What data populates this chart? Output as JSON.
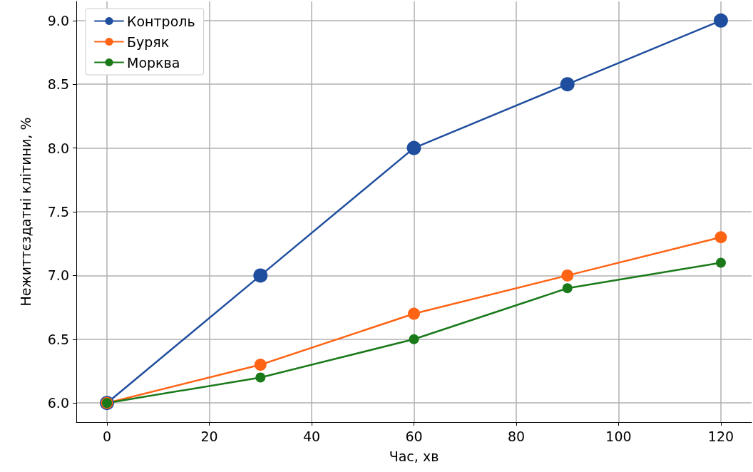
{
  "chart_data": {
    "type": "line",
    "xlabel": "Час, хв",
    "ylabel": "Нежиттєздатні клітини, %",
    "x": [
      0,
      30,
      60,
      90,
      120
    ],
    "series": [
      {
        "name": "Контроль",
        "color": "#1f4e9e",
        "values": [
          6.0,
          7.0,
          8.0,
          8.5,
          9.0
        ]
      },
      {
        "name": "Буряк",
        "color": "#ff6314",
        "values": [
          6.0,
          6.3,
          6.7,
          7.0,
          7.3
        ]
      },
      {
        "name": "Морква",
        "color": "#1a7a1a",
        "values": [
          6.0,
          6.2,
          6.5,
          6.9,
          7.1
        ]
      }
    ],
    "xlim": [
      -6,
      126
    ],
    "xticks": [
      0,
      20,
      40,
      60,
      80,
      100,
      120
    ],
    "ylim": [
      5.85,
      9.15
    ],
    "yticks": [
      {
        "value": 6.0,
        "label": "6.0"
      },
      {
        "value": 6.5,
        "label": "6.5"
      },
      {
        "value": 7.0,
        "label": "7.0"
      },
      {
        "value": 7.5,
        "label": "7.5"
      },
      {
        "value": 8.0,
        "label": "8.0"
      },
      {
        "value": 8.5,
        "label": "8.5"
      },
      {
        "value": 9.0,
        "label": "9.0"
      }
    ],
    "grid": true,
    "legend": "top left",
    "marker": "circle",
    "line_style": "solid"
  }
}
